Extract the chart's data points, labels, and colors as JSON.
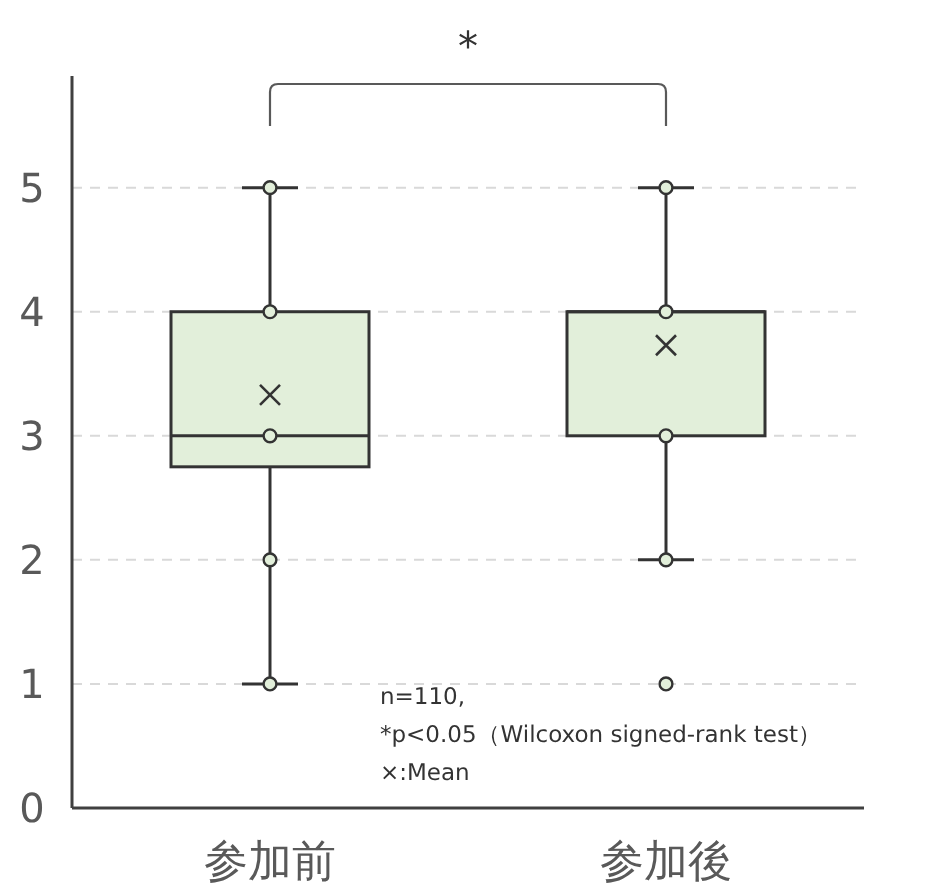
{
  "chart_data": {
    "type": "box",
    "categories": [
      "参加前",
      "参加後"
    ],
    "ylim": [
      0,
      5.9
    ],
    "yticks": [
      0,
      1,
      2,
      3,
      4,
      5
    ],
    "grid": "y",
    "marker": "circle",
    "series": [
      {
        "type": "box",
        "color": "#e2efda",
        "boxes": [
          {
            "low": 1,
            "q1": 2.75,
            "median": 3,
            "q3": 4,
            "high": 5,
            "mean": 3.33
          },
          {
            "low": 2,
            "q1": 3,
            "median": 4,
            "q3": 4,
            "high": 5,
            "mean": 3.73,
            "outliers": [
              1
            ]
          }
        ]
      },
      {
        "type": "scatter",
        "color": "#e2efda",
        "x": [
          "参加前",
          "参加前",
          "参加前",
          "参加前",
          "参加前",
          "参加後",
          "参加後",
          "参加後",
          "参加後"
        ],
        "values": [
          1,
          2,
          3,
          4,
          5,
          2,
          3,
          4,
          5
        ]
      }
    ],
    "annotations": [
      "*",
      "n=110,",
      "*p<0.05（Wilcoxon signed-rank test）",
      "×:Mean"
    ]
  }
}
